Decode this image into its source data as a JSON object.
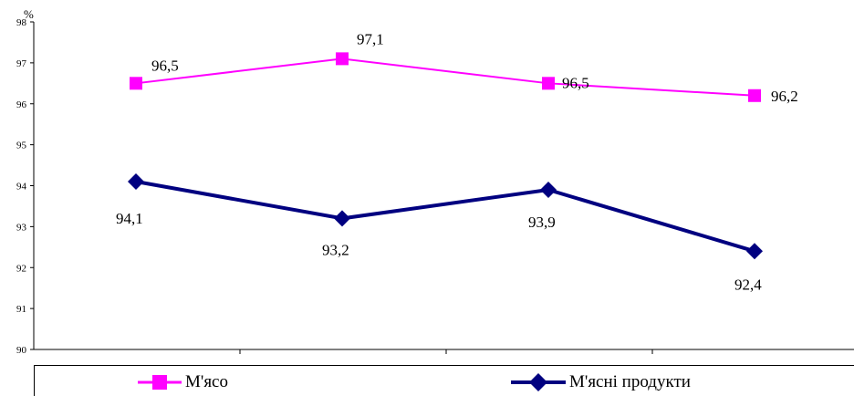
{
  "chart_data": {
    "type": "line",
    "ylabel": "%",
    "ylim": [
      90,
      98
    ],
    "yticks": [
      "90",
      "91",
      "92",
      "93",
      "94",
      "95",
      "96",
      "97",
      "98"
    ],
    "categories": [
      "",
      "",
      "",
      ""
    ],
    "grid": false,
    "legend_position": "bottom",
    "series": [
      {
        "name": "М'ясо",
        "values": [
          96.5,
          97.1,
          96.5,
          96.2
        ],
        "labels": [
          "96,5",
          "97,1",
          "96,5",
          "96,2"
        ],
        "color": "#ff00ff",
        "marker": "square"
      },
      {
        "name": "М'ясні продукти",
        "values": [
          94.1,
          93.2,
          93.9,
          92.4
        ],
        "labels": [
          "94,1",
          "93,2",
          "93,9",
          "92,4"
        ],
        "color": "#000080",
        "marker": "diamond"
      }
    ]
  }
}
